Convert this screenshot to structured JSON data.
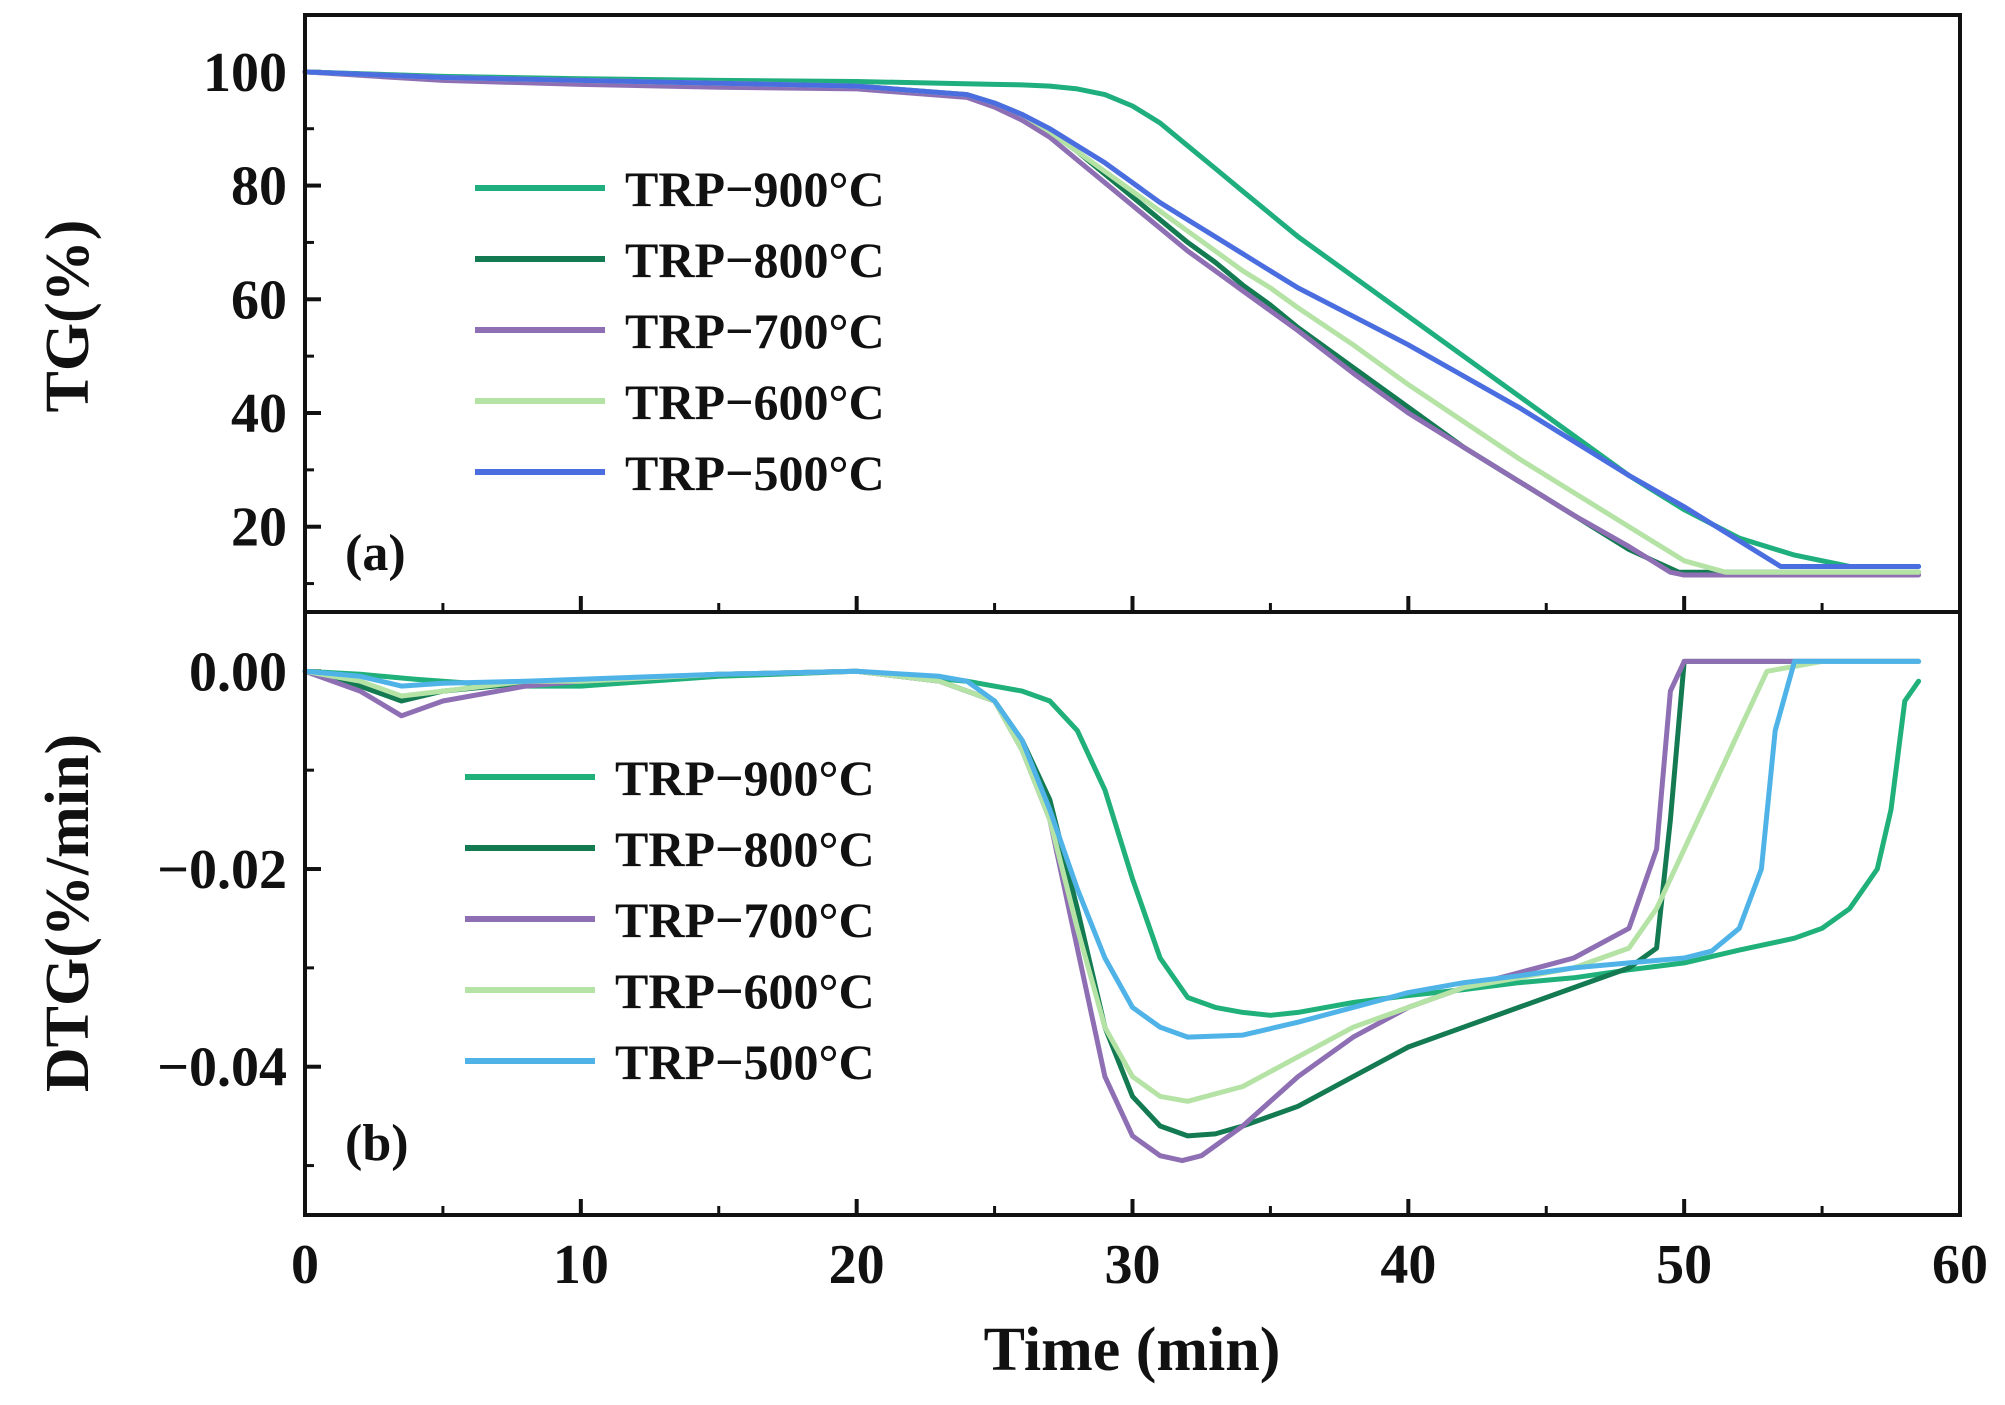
{
  "chart_data": [
    {
      "type": "line",
      "panel_label": "(a)",
      "ylabel": "TG(%)",
      "xlabel": "Time (min)",
      "xlim": [
        0,
        60
      ],
      "ylim": [
        5,
        110
      ],
      "yticks": [
        20,
        40,
        60,
        80,
        100
      ],
      "ytick_labels": [
        "20",
        "40",
        "60",
        "80",
        "100"
      ],
      "legend_position": "center-left",
      "series": [
        {
          "name": "TRP−900°C",
          "color": "#1fae7d",
          "x": [
            0,
            5,
            10,
            15,
            20,
            25,
            26,
            27,
            28,
            29,
            30,
            31,
            32,
            33,
            34,
            35,
            36,
            38,
            40,
            42,
            44,
            46,
            48,
            50,
            52,
            54,
            56,
            57.2,
            58.5
          ],
          "y": [
            100,
            99.2,
            98.8,
            98.5,
            98.3,
            97.8,
            97.7,
            97.5,
            97,
            96,
            94,
            91,
            87,
            83,
            79,
            75,
            71,
            64,
            57,
            50,
            43,
            36,
            29,
            23,
            18,
            15,
            13,
            13,
            13
          ]
        },
        {
          "name": "TRP−800°C",
          "color": "#137a52",
          "x": [
            0,
            5,
            10,
            15,
            20,
            24,
            25,
            26,
            27,
            28,
            29,
            30,
            31,
            32,
            33,
            34,
            35,
            36,
            38,
            40,
            42,
            44,
            46,
            48,
            49.8,
            50,
            52,
            55,
            58.5
          ],
          "y": [
            100,
            99,
            98.5,
            98,
            97.5,
            96,
            94.5,
            92.5,
            89.5,
            86,
            82,
            78,
            74,
            70,
            66.5,
            62.5,
            59,
            55,
            48,
            41,
            34,
            28,
            22,
            16,
            12,
            12,
            12,
            12,
            12
          ]
        },
        {
          "name": "TRP−700°C",
          "color": "#8e6fb3",
          "x": [
            0,
            5,
            10,
            15,
            20,
            24,
            25,
            26,
            27,
            28,
            29,
            30,
            31,
            32,
            33,
            34,
            35,
            36,
            38,
            40,
            42,
            44,
            46,
            48,
            49.5,
            50,
            52,
            55,
            58.5
          ],
          "y": [
            100,
            98.5,
            97.8,
            97.3,
            97,
            95.5,
            93.8,
            91.5,
            88.5,
            84.5,
            80.5,
            76.5,
            72.5,
            68.5,
            65,
            61.5,
            58,
            54.5,
            47,
            40,
            34,
            28,
            22,
            16.5,
            12,
            11.5,
            11.5,
            11.5,
            11.5
          ]
        },
        {
          "name": "TRP−600°C",
          "color": "#b5e3a6",
          "x": [
            0,
            5,
            10,
            15,
            20,
            24,
            25,
            26,
            27,
            28,
            29,
            30,
            31,
            32,
            33,
            34,
            35,
            36,
            38,
            40,
            42,
            44,
            46,
            48,
            50,
            51.5,
            53,
            55,
            58.5
          ],
          "y": [
            100,
            99,
            98.5,
            98,
            97.5,
            96,
            94.5,
            92.5,
            89.5,
            86,
            82.5,
            79,
            75.5,
            72,
            68.5,
            65,
            62,
            58.5,
            52,
            45,
            38.5,
            32,
            26,
            20,
            14,
            12,
            12,
            12,
            12
          ]
        },
        {
          "name": "TRP−500°C",
          "color": "#4a6ee0",
          "x": [
            0,
            5,
            10,
            15,
            20,
            24,
            25,
            26,
            27,
            28,
            29,
            30,
            31,
            32,
            33,
            34,
            35,
            36,
            38,
            40,
            42,
            44,
            46,
            48,
            50,
            52,
            53.5,
            55,
            58.5
          ],
          "y": [
            100,
            99,
            98.5,
            98,
            97.5,
            96,
            94.5,
            92.5,
            90,
            87,
            84,
            80.5,
            77,
            74,
            71,
            68,
            65,
            62,
            57,
            52,
            46.5,
            41,
            35,
            29,
            23.5,
            17.5,
            13,
            13,
            13
          ]
        }
      ]
    },
    {
      "type": "line",
      "panel_label": "(b)",
      "ylabel": "DTG(%/min)",
      "xlabel": "Time (min)",
      "xlim": [
        0,
        60
      ],
      "ylim": [
        -0.055,
        0.006
      ],
      "xticks": [
        0,
        10,
        20,
        30,
        40,
        50,
        60
      ],
      "xtick_labels": [
        "0",
        "10",
        "20",
        "30",
        "40",
        "50",
        "60"
      ],
      "yticks": [
        0,
        -0.02,
        -0.04
      ],
      "ytick_labels": [
        "0.00",
        "−0.02",
        "−0.04"
      ],
      "legend_position": "center-left",
      "series": [
        {
          "name": "TRP−900°C",
          "color": "#20b07a",
          "x": [
            0,
            2,
            4,
            6,
            8,
            10,
            15,
            20,
            24,
            26,
            27,
            28,
            29,
            30,
            31,
            32,
            33,
            34,
            35,
            36,
            38,
            40,
            42,
            44,
            46,
            48,
            50,
            52,
            54,
            55,
            56,
            57,
            57.5,
            58,
            58.5
          ],
          "y": [
            0,
            -0.0003,
            -0.0008,
            -0.0012,
            -0.0015,
            -0.0015,
            -0.0005,
            0,
            -0.001,
            -0.002,
            -0.003,
            -0.006,
            -0.012,
            -0.021,
            -0.029,
            -0.033,
            -0.034,
            -0.0345,
            -0.0348,
            -0.0345,
            -0.0335,
            -0.0328,
            -0.0322,
            -0.0315,
            -0.031,
            -0.0302,
            -0.0295,
            -0.0282,
            -0.027,
            -0.026,
            -0.024,
            -0.02,
            -0.014,
            -0.003,
            -0.001
          ]
        },
        {
          "name": "TRP−800°C",
          "color": "#137a52",
          "x": [
            0,
            2,
            3.5,
            5,
            8,
            10,
            15,
            20,
            23,
            25,
            26,
            27,
            28,
            29,
            30,
            31,
            32,
            33,
            34,
            36,
            38,
            40,
            42,
            44,
            46,
            48,
            49,
            49.5,
            50,
            52,
            55,
            58.5
          ],
          "y": [
            0,
            -0.0015,
            -0.003,
            -0.002,
            -0.0012,
            -0.001,
            -0.0003,
            0,
            -0.001,
            -0.003,
            -0.007,
            -0.013,
            -0.024,
            -0.036,
            -0.043,
            -0.046,
            -0.047,
            -0.0468,
            -0.046,
            -0.044,
            -0.041,
            -0.038,
            -0.036,
            -0.034,
            -0.032,
            -0.03,
            -0.028,
            -0.015,
            0.001,
            0.001,
            0.001,
            0.001
          ]
        },
        {
          "name": "TRP−700°C",
          "color": "#8e6fb3",
          "x": [
            0,
            2,
            3.5,
            5,
            8,
            10,
            15,
            20,
            23,
            25,
            26,
            27,
            28,
            29,
            30,
            31,
            31.8,
            32.5,
            34,
            36,
            38,
            40,
            42,
            44,
            46,
            48,
            49,
            49.5,
            50,
            52,
            55,
            58.5
          ],
          "y": [
            0,
            -0.002,
            -0.0045,
            -0.003,
            -0.0015,
            -0.001,
            -0.0003,
            0,
            -0.001,
            -0.003,
            -0.008,
            -0.015,
            -0.028,
            -0.041,
            -0.047,
            -0.049,
            -0.0495,
            -0.049,
            -0.046,
            -0.041,
            -0.037,
            -0.034,
            -0.032,
            -0.0305,
            -0.029,
            -0.026,
            -0.018,
            -0.002,
            0.001,
            0.001,
            0.001,
            0.001
          ]
        },
        {
          "name": "TRP−600°C",
          "color": "#b5e3a6",
          "x": [
            0,
            2,
            3.5,
            5,
            8,
            10,
            15,
            20,
            23,
            25,
            26,
            27,
            28,
            29,
            30,
            31,
            32,
            34,
            36,
            38,
            40,
            42,
            44,
            46,
            48,
            49,
            50,
            51,
            52,
            53,
            55,
            58.5
          ],
          "y": [
            0,
            -0.001,
            -0.0025,
            -0.002,
            -0.001,
            -0.001,
            -0.0003,
            0,
            -0.001,
            -0.003,
            -0.008,
            -0.015,
            -0.026,
            -0.036,
            -0.041,
            -0.043,
            -0.0435,
            -0.042,
            -0.039,
            -0.036,
            -0.034,
            -0.032,
            -0.031,
            -0.03,
            -0.028,
            -0.024,
            -0.018,
            -0.012,
            -0.006,
            0,
            0.001,
            0.001
          ]
        },
        {
          "name": "TRP−500°C",
          "color": "#4fb3e8",
          "x": [
            0,
            2,
            3.5,
            5,
            8,
            10,
            15,
            20,
            23,
            24,
            25,
            26,
            27,
            28,
            29,
            30,
            31,
            32,
            34,
            36,
            38,
            40,
            42,
            44,
            46,
            48,
            50,
            51,
            52,
            52.8,
            53.3,
            54,
            58.5
          ],
          "y": [
            0,
            -0.0005,
            -0.0015,
            -0.0012,
            -0.001,
            -0.0008,
            -0.0003,
            0,
            -0.0005,
            -0.001,
            -0.003,
            -0.007,
            -0.014,
            -0.022,
            -0.029,
            -0.034,
            -0.036,
            -0.037,
            -0.0368,
            -0.0355,
            -0.034,
            -0.0325,
            -0.0315,
            -0.0308,
            -0.03,
            -0.0295,
            -0.029,
            -0.0283,
            -0.026,
            -0.02,
            -0.006,
            0.001,
            0.001
          ]
        }
      ]
    }
  ]
}
